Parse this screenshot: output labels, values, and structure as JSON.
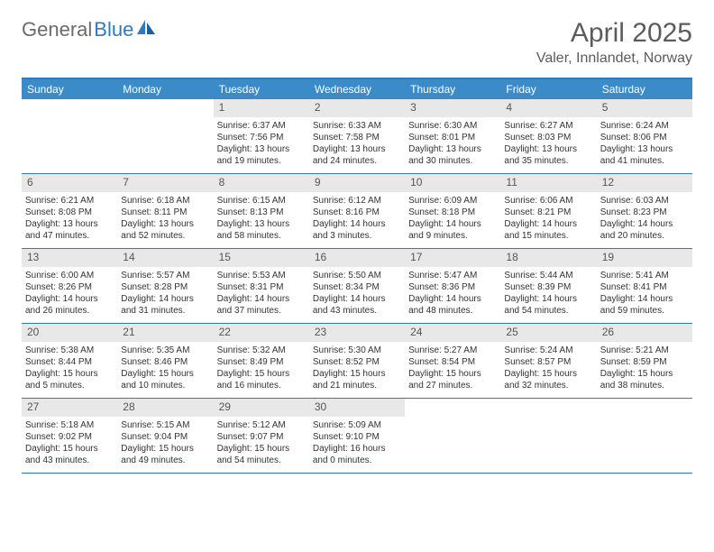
{
  "brand": {
    "word1": "General",
    "word2": "Blue"
  },
  "title": "April 2025",
  "subtitle": "Valer, Innlandet, Norway",
  "colors": {
    "header_bar": "#3b8bc8",
    "border": "#2f7bbf",
    "daynum_bg": "#e8e8e8",
    "text_gray": "#5c5c5c"
  },
  "day_headers": [
    "Sunday",
    "Monday",
    "Tuesday",
    "Wednesday",
    "Thursday",
    "Friday",
    "Saturday"
  ],
  "weeks": [
    [
      null,
      null,
      {
        "n": "1",
        "sr": "Sunrise: 6:37 AM",
        "ss": "Sunset: 7:56 PM",
        "dl": "Daylight: 13 hours and 19 minutes."
      },
      {
        "n": "2",
        "sr": "Sunrise: 6:33 AM",
        "ss": "Sunset: 7:58 PM",
        "dl": "Daylight: 13 hours and 24 minutes."
      },
      {
        "n": "3",
        "sr": "Sunrise: 6:30 AM",
        "ss": "Sunset: 8:01 PM",
        "dl": "Daylight: 13 hours and 30 minutes."
      },
      {
        "n": "4",
        "sr": "Sunrise: 6:27 AM",
        "ss": "Sunset: 8:03 PM",
        "dl": "Daylight: 13 hours and 35 minutes."
      },
      {
        "n": "5",
        "sr": "Sunrise: 6:24 AM",
        "ss": "Sunset: 8:06 PM",
        "dl": "Daylight: 13 hours and 41 minutes."
      }
    ],
    [
      {
        "n": "6",
        "sr": "Sunrise: 6:21 AM",
        "ss": "Sunset: 8:08 PM",
        "dl": "Daylight: 13 hours and 47 minutes."
      },
      {
        "n": "7",
        "sr": "Sunrise: 6:18 AM",
        "ss": "Sunset: 8:11 PM",
        "dl": "Daylight: 13 hours and 52 minutes."
      },
      {
        "n": "8",
        "sr": "Sunrise: 6:15 AM",
        "ss": "Sunset: 8:13 PM",
        "dl": "Daylight: 13 hours and 58 minutes."
      },
      {
        "n": "9",
        "sr": "Sunrise: 6:12 AM",
        "ss": "Sunset: 8:16 PM",
        "dl": "Daylight: 14 hours and 3 minutes."
      },
      {
        "n": "10",
        "sr": "Sunrise: 6:09 AM",
        "ss": "Sunset: 8:18 PM",
        "dl": "Daylight: 14 hours and 9 minutes."
      },
      {
        "n": "11",
        "sr": "Sunrise: 6:06 AM",
        "ss": "Sunset: 8:21 PM",
        "dl": "Daylight: 14 hours and 15 minutes."
      },
      {
        "n": "12",
        "sr": "Sunrise: 6:03 AM",
        "ss": "Sunset: 8:23 PM",
        "dl": "Daylight: 14 hours and 20 minutes."
      }
    ],
    [
      {
        "n": "13",
        "sr": "Sunrise: 6:00 AM",
        "ss": "Sunset: 8:26 PM",
        "dl": "Daylight: 14 hours and 26 minutes."
      },
      {
        "n": "14",
        "sr": "Sunrise: 5:57 AM",
        "ss": "Sunset: 8:28 PM",
        "dl": "Daylight: 14 hours and 31 minutes."
      },
      {
        "n": "15",
        "sr": "Sunrise: 5:53 AM",
        "ss": "Sunset: 8:31 PM",
        "dl": "Daylight: 14 hours and 37 minutes."
      },
      {
        "n": "16",
        "sr": "Sunrise: 5:50 AM",
        "ss": "Sunset: 8:34 PM",
        "dl": "Daylight: 14 hours and 43 minutes."
      },
      {
        "n": "17",
        "sr": "Sunrise: 5:47 AM",
        "ss": "Sunset: 8:36 PM",
        "dl": "Daylight: 14 hours and 48 minutes."
      },
      {
        "n": "18",
        "sr": "Sunrise: 5:44 AM",
        "ss": "Sunset: 8:39 PM",
        "dl": "Daylight: 14 hours and 54 minutes."
      },
      {
        "n": "19",
        "sr": "Sunrise: 5:41 AM",
        "ss": "Sunset: 8:41 PM",
        "dl": "Daylight: 14 hours and 59 minutes."
      }
    ],
    [
      {
        "n": "20",
        "sr": "Sunrise: 5:38 AM",
        "ss": "Sunset: 8:44 PM",
        "dl": "Daylight: 15 hours and 5 minutes."
      },
      {
        "n": "21",
        "sr": "Sunrise: 5:35 AM",
        "ss": "Sunset: 8:46 PM",
        "dl": "Daylight: 15 hours and 10 minutes."
      },
      {
        "n": "22",
        "sr": "Sunrise: 5:32 AM",
        "ss": "Sunset: 8:49 PM",
        "dl": "Daylight: 15 hours and 16 minutes."
      },
      {
        "n": "23",
        "sr": "Sunrise: 5:30 AM",
        "ss": "Sunset: 8:52 PM",
        "dl": "Daylight: 15 hours and 21 minutes."
      },
      {
        "n": "24",
        "sr": "Sunrise: 5:27 AM",
        "ss": "Sunset: 8:54 PM",
        "dl": "Daylight: 15 hours and 27 minutes."
      },
      {
        "n": "25",
        "sr": "Sunrise: 5:24 AM",
        "ss": "Sunset: 8:57 PM",
        "dl": "Daylight: 15 hours and 32 minutes."
      },
      {
        "n": "26",
        "sr": "Sunrise: 5:21 AM",
        "ss": "Sunset: 8:59 PM",
        "dl": "Daylight: 15 hours and 38 minutes."
      }
    ],
    [
      {
        "n": "27",
        "sr": "Sunrise: 5:18 AM",
        "ss": "Sunset: 9:02 PM",
        "dl": "Daylight: 15 hours and 43 minutes."
      },
      {
        "n": "28",
        "sr": "Sunrise: 5:15 AM",
        "ss": "Sunset: 9:04 PM",
        "dl": "Daylight: 15 hours and 49 minutes."
      },
      {
        "n": "29",
        "sr": "Sunrise: 5:12 AM",
        "ss": "Sunset: 9:07 PM",
        "dl": "Daylight: 15 hours and 54 minutes."
      },
      {
        "n": "30",
        "sr": "Sunrise: 5:09 AM",
        "ss": "Sunset: 9:10 PM",
        "dl": "Daylight: 16 hours and 0 minutes."
      },
      null,
      null,
      null
    ]
  ]
}
